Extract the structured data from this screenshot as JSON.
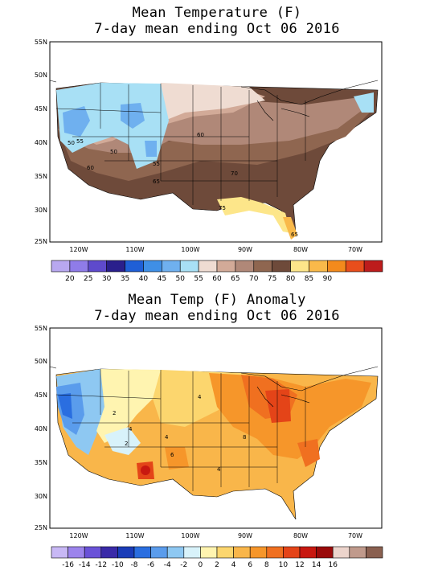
{
  "panel1": {
    "title_line1": "Mean Temperature (F)",
    "title_line2": "7-day mean ending Oct 06 2016",
    "lat_labels": [
      "55N",
      "50N",
      "45N",
      "40N",
      "35N",
      "30N",
      "25N"
    ],
    "lon_labels": [
      "120W",
      "110W",
      "100W",
      "90W",
      "80W",
      "70W"
    ],
    "contour_labels": [
      "50",
      "55",
      "50",
      "60",
      "55",
      "60",
      "65",
      "70",
      "75",
      "65"
    ],
    "legend": {
      "colors": [
        "#b8a8f0",
        "#8f7ce8",
        "#5e4acc",
        "#2a1f8c",
        "#1f5fd6",
        "#3f8fe6",
        "#6fb0ef",
        "#a8e0f5",
        "#efdcd2",
        "#d2aa98",
        "#b08878",
        "#8f6650",
        "#6e4a3a",
        "#fde68a",
        "#f9b94a",
        "#f38a1c",
        "#e84e1c",
        "#bd1c1c"
      ],
      "labels": [
        "20",
        "25",
        "30",
        "35",
        "40",
        "45",
        "50",
        "55",
        "60",
        "65",
        "70",
        "75",
        "80",
        "85",
        "90"
      ]
    }
  },
  "panel2": {
    "title_line1": "Mean Temp (F) Anomaly",
    "title_line2": "7-day mean ending Oct 06 2016",
    "lat_labels": [
      "55N",
      "50N",
      "45N",
      "40N",
      "35N",
      "30N",
      "25N"
    ],
    "lon_labels": [
      "120W",
      "110W",
      "100W",
      "90W",
      "80W",
      "70W"
    ],
    "contour_labels": [
      "4",
      "2",
      "4",
      "2",
      "4",
      "8",
      "6",
      "4"
    ],
    "legend": {
      "colors": [
        "#c8b8f5",
        "#9c84ec",
        "#6a52d8",
        "#3a2aa8",
        "#1a3cb8",
        "#2a6ee0",
        "#5a9cec",
        "#8ec8f2",
        "#d8f2fa",
        "#fff4b0",
        "#fcd66e",
        "#f9b64a",
        "#f6962a",
        "#f07020",
        "#e44418",
        "#c81810",
        "#9a0a0a",
        "#ecd4cc",
        "#c09a8c",
        "#8a6050"
      ],
      "labels": [
        "-16",
        "-14",
        "-12",
        "-10",
        "-8",
        "-6",
        "-4",
        "-2",
        "0",
        "2",
        "4",
        "6",
        "8",
        "10",
        "12",
        "14",
        "16"
      ]
    }
  }
}
